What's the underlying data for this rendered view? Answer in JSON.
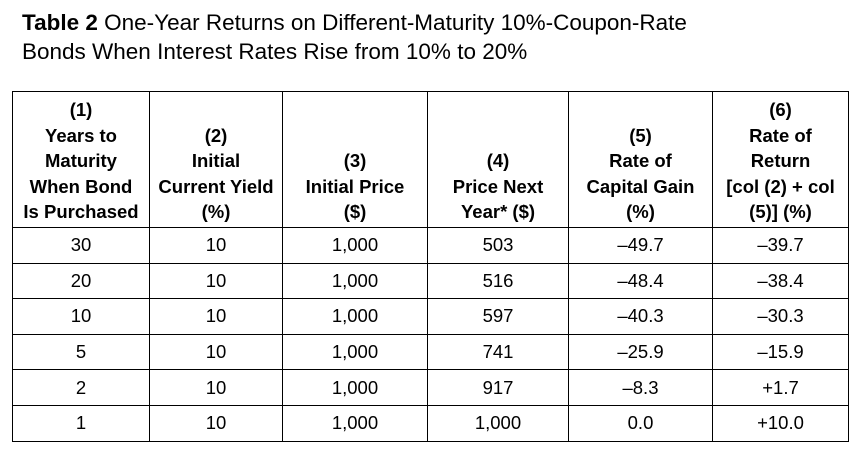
{
  "title": {
    "label": "Table 2",
    "line1": "One-Year Returns on Different-Maturity 10%-Coupon-Rate",
    "line2": "Bonds When Interest Rates Rise from 10% to 20%"
  },
  "columns": [
    {
      "lines": [
        "(1)",
        "Years to",
        "Maturity",
        "When Bond",
        "Is Purchased"
      ]
    },
    {
      "lines": [
        "(2)",
        "Initial",
        "Current Yield",
        "(%)"
      ]
    },
    {
      "lines": [
        "(3)",
        "Initial Price",
        "($)"
      ]
    },
    {
      "lines": [
        "(4)",
        "Price Next",
        "Year* ($)"
      ]
    },
    {
      "lines": [
        "(5)",
        "Rate of",
        "Capital Gain",
        "(%)"
      ]
    },
    {
      "lines": [
        "(6)",
        "Rate of",
        "Return",
        "[col (2) + col",
        "(5)] (%)"
      ]
    }
  ],
  "rows": [
    [
      "30",
      "10",
      "1,000",
      "503",
      "–49.7",
      "–39.7"
    ],
    [
      "20",
      "10",
      "1,000",
      "516",
      "–48.4",
      "–38.4"
    ],
    [
      "10",
      "10",
      "1,000",
      "597",
      "–40.3",
      "–30.3"
    ],
    [
      "5",
      "10",
      "1,000",
      "741",
      "–25.9",
      "–15.9"
    ],
    [
      "2",
      "10",
      "1,000",
      "917",
      "–8.3",
      "+1.7"
    ],
    [
      "1",
      "10",
      "1,000",
      "1,000",
      "0.0",
      "+10.0"
    ]
  ]
}
